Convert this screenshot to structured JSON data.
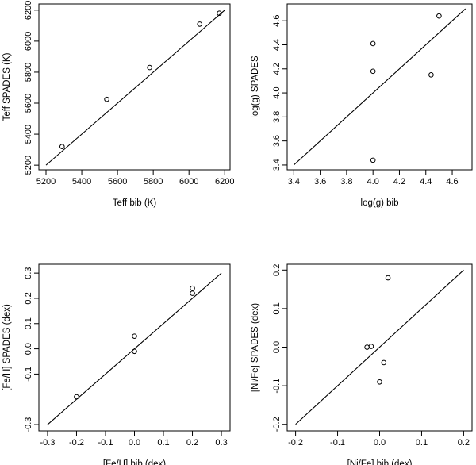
{
  "chart_data": [
    {
      "type": "scatter",
      "title": "",
      "xlabel": "Teff bib (K)",
      "ylabel": "Teff SPADES (K)",
      "xlim": [
        5160,
        6230
      ],
      "ylim": [
        5170,
        6240
      ],
      "xticks": [
        5200,
        5400,
        5600,
        5800,
        6000,
        6200
      ],
      "yticks": [
        5200,
        5400,
        5600,
        5800,
        6000,
        6200
      ],
      "xtick_labels": [
        "5200",
        "5400",
        "5600",
        "5800",
        "6000",
        "6200"
      ],
      "ytick_labels": [
        "5200",
        "5400",
        "5600",
        "5800",
        "6000",
        "6200"
      ],
      "points": [
        {
          "x": 5290,
          "y": 5320
        },
        {
          "x": 5540,
          "y": 5625
        },
        {
          "x": 5780,
          "y": 5830
        },
        {
          "x": 6060,
          "y": 6110
        },
        {
          "x": 6170,
          "y": 6180
        }
      ],
      "reference_line": {
        "x1": 5200,
        "y1": 5200,
        "x2": 6200,
        "y2": 6200
      }
    },
    {
      "type": "scatter",
      "title": "",
      "xlabel": "log(g) bib",
      "ylabel": "log(g) SPADES",
      "xlim": [
        3.35,
        4.75
      ],
      "ylim": [
        3.36,
        4.74
      ],
      "xticks": [
        3.4,
        3.6,
        3.8,
        4.0,
        4.2,
        4.4,
        4.6
      ],
      "yticks": [
        3.4,
        3.6,
        3.8,
        4.0,
        4.2,
        4.4,
        4.6
      ],
      "xtick_labels": [
        "3.4",
        "3.6",
        "3.8",
        "4.0",
        "4.2",
        "4.4",
        "4.6"
      ],
      "ytick_labels": [
        "3.4",
        "3.6",
        "3.8",
        "4.0",
        "4.2",
        "4.4",
        "4.6"
      ],
      "points": [
        {
          "x": 4.0,
          "y": 4.41
        },
        {
          "x": 4.0,
          "y": 4.18
        },
        {
          "x": 4.0,
          "y": 3.44
        },
        {
          "x": 4.44,
          "y": 4.15
        },
        {
          "x": 4.5,
          "y": 4.64
        }
      ],
      "reference_line": {
        "x1": 3.4,
        "y1": 3.4,
        "x2": 4.7,
        "y2": 4.7
      }
    },
    {
      "type": "scatter",
      "title": "",
      "xlabel": "[Fe/H] bib (dex)",
      "ylabel": "[Fe/H] SPADES (dex)",
      "xlim": [
        -0.33,
        0.33
      ],
      "ylim": [
        -0.325,
        0.335
      ],
      "xticks": [
        -0.3,
        -0.2,
        -0.1,
        0.0,
        0.1,
        0.2,
        0.3
      ],
      "yticks": [
        -0.3,
        -0.1,
        0.0,
        0.1,
        0.2,
        0.3
      ],
      "xtick_labels": [
        "-0.3",
        "-0.2",
        "-0.1",
        "0.0",
        "0.1",
        "0.2",
        "0.3"
      ],
      "ytick_labels": [
        "-0.3",
        "-0.1",
        "0.0",
        "0.1",
        "0.2",
        "0.3"
      ],
      "points": [
        {
          "x": -0.2,
          "y": -0.19
        },
        {
          "x": 0.0,
          "y": 0.05
        },
        {
          "x": 0.0,
          "y": -0.01
        },
        {
          "x": 0.2,
          "y": 0.24
        },
        {
          "x": 0.2,
          "y": 0.22
        }
      ],
      "reference_line": {
        "x1": -0.3,
        "y1": -0.3,
        "x2": 0.3,
        "y2": 0.3
      }
    },
    {
      "type": "scatter",
      "title": "",
      "xlabel": "[Ni/Fe] bib (dex)",
      "ylabel": "[Ni/Fe] SPADES (dex)",
      "xlim": [
        -0.22,
        0.22
      ],
      "ylim": [
        -0.217,
        0.215
      ],
      "xticks": [
        -0.2,
        -0.1,
        0.0,
        0.1,
        0.2
      ],
      "yticks": [
        -0.2,
        -0.1,
        0.0,
        0.1,
        0.2
      ],
      "xtick_labels": [
        "-0.2",
        "-0.1",
        "0.0",
        "0.1",
        "0.2"
      ],
      "ytick_labels": [
        "-0.2",
        "-0.1",
        "0.0",
        "0.1",
        "0.2"
      ],
      "points": [
        {
          "x": -0.03,
          "y": 0.0
        },
        {
          "x": -0.02,
          "y": 0.002
        },
        {
          "x": 0.02,
          "y": 0.18
        },
        {
          "x": 0.01,
          "y": -0.04
        },
        {
          "x": 0.0,
          "y": -0.09
        }
      ],
      "reference_line": {
        "x1": -0.2,
        "y1": -0.2,
        "x2": 0.2,
        "y2": 0.2
      }
    }
  ]
}
